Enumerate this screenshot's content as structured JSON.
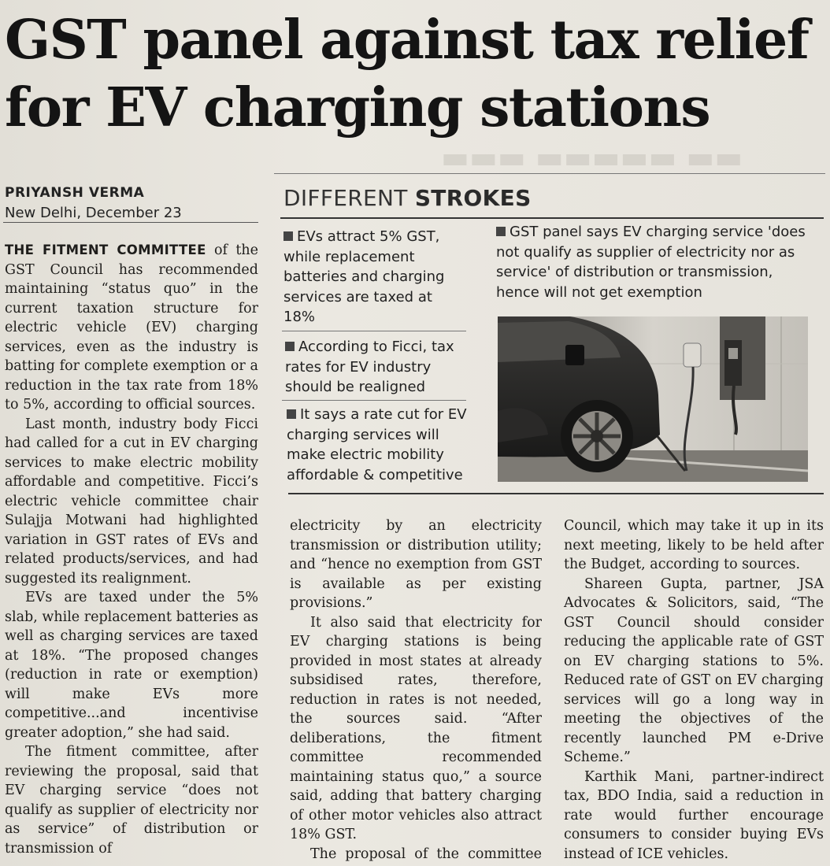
{
  "article": {
    "headline_line1": "GST panel against tax relief",
    "headline_line2": "for EV charging stations",
    "byline_name": "PRIYANSH VERMA",
    "byline_place": "New Delhi, December 23"
  },
  "sidebar": {
    "title_regular": "DIFFERENT",
    "title_bold": "STROKES",
    "bullets": [
      "EVs attract 5% GST, while replacement batteries and charging services are taxed at 18%",
      "According to Ficci, tax rates for EV industry should be realigned",
      "It says a rate cut for EV charging services will make electric mobility affordable & competitive",
      "GST panel says EV charging service 'does not qualify as supplier of electricity nor as service' of distribution or transmission, hence will not get exemption"
    ]
  },
  "column1": {
    "kicker": "THE FITMENT COMMITTEE",
    "p1_rest": " of the GST Council has recommended maintaining “status quo” in the current taxation structure for electric vehicle (EV) charging services, even as the industry is batting for complete exemption or a reduction in the tax rate from 18% to 5%, according to official sources.",
    "p2": "Last month, industry body Ficci had called for a cut in EV charging services to make electric mobility affordable and competitive. Ficci’s electric vehicle committee chair Sulajja Motwani had highlighted variation in GST rates of EVs and related products/services, and had suggested its realignment.",
    "p3": "EVs are taxed under the 5% slab, while replacement batteries as well as charging services are taxed at 18%. “The proposed changes (reduction in rate or exemption) will make EVs more competitive...and incentivise greater adoption,” she had said.",
    "p4": "The fitment committee, after reviewing the proposal, said that EV charging service “does not qualify as supplier of electricity nor as service” of distribution or transmission of"
  },
  "column2": {
    "p1": "electricity by an electricity transmission or distribution utility; and “hence no exemption from GST is available as per existing provisions.”",
    "p2": "It also said that electricity for EV charging stations is being provided in most states at already subsidised rates, therefore, reduction in rates is not needed, the sources said. “After deliberations, the fitment committee recommended maintaining status quo,” a source said, adding that battery charging of other motor vehicles also attract 18% GST.",
    "p3": "The proposal of the committee has been submitted to the GST"
  },
  "column3": {
    "p1": "Council, which may take it up in its next meeting, likely to be held after the Budget, according to sources.",
    "p2": "Shareen Gupta, partner, JSA Advocates & Solicitors, said, “The GST Council should consider reducing the applicable rate of GST on EV charging stations to 5%. Reduced rate of GST on EV charging services will go a long way in meeting the objectives of the recently launched PM e-Drive Scheme.”",
    "p3": "Karthik Mani, partner-indirect tax, BDO India, said a reduction in rate would further encourage consumers to consider buying EVs instead of ICE vehicles."
  },
  "colors": {
    "paper": "#e7e4dd",
    "ink": "#1d1c1a",
    "rule": "#333333"
  },
  "icons": [
    "bullet-square-icon"
  ]
}
